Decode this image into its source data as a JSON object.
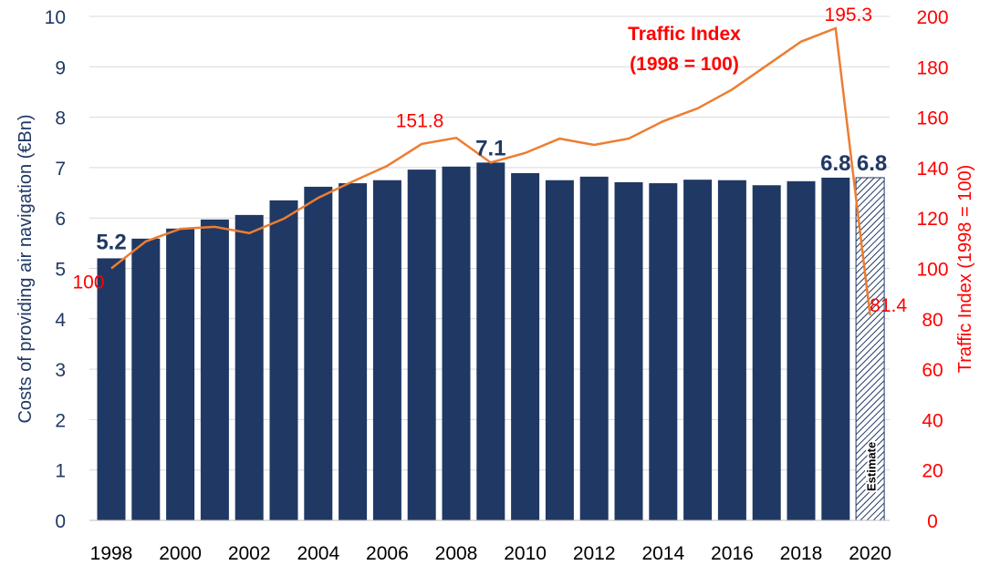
{
  "chart_data": {
    "type": "bar+line",
    "categories": [
      "1998",
      "1999",
      "2000",
      "2001",
      "2002",
      "2003",
      "2004",
      "2005",
      "2006",
      "2007",
      "2008",
      "2009",
      "2010",
      "2011",
      "2012",
      "2013",
      "2014",
      "2015",
      "2016",
      "2017",
      "2018",
      "2019",
      "2020"
    ],
    "x_tick_labels": [
      "1998",
      "2000",
      "2002",
      "2004",
      "2006",
      "2008",
      "2010",
      "2012",
      "2014",
      "2016",
      "2018",
      "2020"
    ],
    "series": [
      {
        "kind": "bar",
        "axis": "left",
        "color": "#203864",
        "values": [
          5.2,
          5.59,
          5.79,
          5.97,
          6.06,
          6.35,
          6.62,
          6.69,
          6.75,
          6.96,
          7.02,
          7.1,
          6.89,
          6.75,
          6.82,
          6.71,
          6.69,
          6.76,
          6.75,
          6.65,
          6.73,
          6.8,
          6.8
        ],
        "estimate_categories": [
          "2020"
        ],
        "estimate_label": "Estimate",
        "data_labels": [
          {
            "category": "1998",
            "text": "5.2"
          },
          {
            "category": "2009",
            "text": "7.1"
          },
          {
            "category": "2019",
            "text": "6.8"
          },
          {
            "category": "2020",
            "text": "6.8"
          }
        ]
      },
      {
        "kind": "line",
        "axis": "right",
        "color": "#ED7D31",
        "name": "Traffic Index (1998 = 100)",
        "name_lines": [
          "Traffic Index",
          "(1998 = 100)"
        ],
        "values": [
          100,
          110.7,
          115.7,
          116.5,
          114,
          119.7,
          128,
          134.5,
          140.7,
          149.4,
          151.8,
          142,
          145.8,
          151.5,
          149,
          151.5,
          158.4,
          163.5,
          171,
          180.5,
          190,
          195.3,
          81.4
        ],
        "data_labels": [
          {
            "category": "1998",
            "text": "100"
          },
          {
            "category": "2008",
            "text": "151.8"
          },
          {
            "category": "2019",
            "text": "195.3"
          },
          {
            "category": "2020",
            "text": "81.4"
          }
        ]
      }
    ],
    "ylabel": "Costs of providing air navigation (€Bn)",
    "ylim": [
      0,
      10
    ],
    "yticks": [
      "0",
      "1",
      "2",
      "3",
      "4",
      "5",
      "6",
      "7",
      "8",
      "9",
      "10"
    ],
    "y2label": "Traffic Index (1998 = 100)",
    "y2lim": [
      0,
      200
    ],
    "y2ticks": [
      "0",
      "20",
      "40",
      "60",
      "80",
      "100",
      "120",
      "140",
      "160",
      "180",
      "200"
    ],
    "grid": true,
    "colors": {
      "bar": "#203864",
      "line": "#ED7D31",
      "right_axis_text": "#FF0000",
      "left_axis_text": "#203864"
    }
  }
}
